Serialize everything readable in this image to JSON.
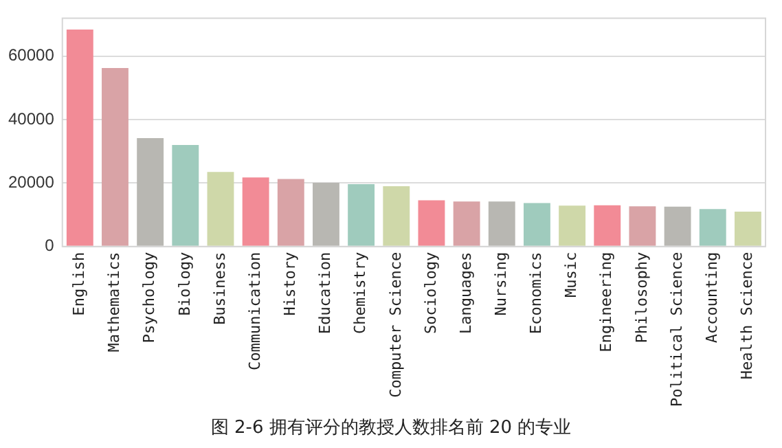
{
  "chart_data": {
    "type": "bar",
    "title": "图 2-6 拥有评分的教授人数排名前 20 的专业",
    "categories": [
      "English",
      "Mathematics",
      "Psychology",
      "Biology",
      "Business",
      "Communication",
      "History",
      "Education",
      "Chemistry",
      "Computer Science",
      "Sociology",
      "Languages",
      "Nursing",
      "Economics",
      "Music",
      "Engineering",
      "Philosophy",
      "Political Science",
      "Accounting",
      "Health Science"
    ],
    "values": [
      68400,
      56300,
      34200,
      32000,
      23500,
      21800,
      21300,
      20100,
      19700,
      19000,
      14600,
      14200,
      14200,
      13700,
      12900,
      13000,
      12700,
      12600,
      11800,
      11000
    ],
    "colors": [
      "#f28b96",
      "#d9a3a6",
      "#b8b7b2",
      "#9fcbbd",
      "#cfd8a9",
      "#f28b96",
      "#d9a3a6",
      "#b8b7b2",
      "#9fcbbd",
      "#cfd8a9",
      "#f28b96",
      "#d9a3a6",
      "#b8b7b2",
      "#9fcbbd",
      "#cfd8a9",
      "#f28b96",
      "#d9a3a6",
      "#b8b7b2",
      "#9fcbbd",
      "#cfd8a9"
    ],
    "ylim": [
      0,
      72000
    ],
    "yticks": [
      0,
      20000,
      40000,
      60000
    ],
    "grid": "y",
    "legend": false
  }
}
